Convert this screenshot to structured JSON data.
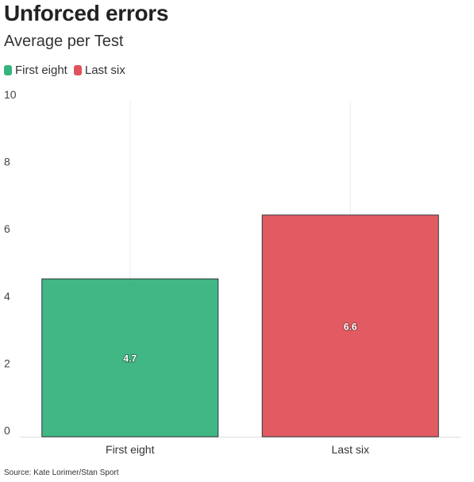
{
  "header": {
    "title": "Unforced errors",
    "subtitle": "Average per Test"
  },
  "legend": [
    {
      "label": "First eight",
      "color": "#36b37e"
    },
    {
      "label": "Last six",
      "color": "#e0525b"
    }
  ],
  "source": "Source: Kate Lorimer/Stan Sport",
  "chart_data": {
    "type": "bar",
    "categories": [
      "First eight",
      "Last six"
    ],
    "values": [
      4.7,
      6.6
    ],
    "value_labels": [
      "4.7",
      "6.6"
    ],
    "colors": [
      "#36b37e",
      "#e0525b"
    ],
    "ylim": [
      0,
      10
    ],
    "yticks": [
      0,
      2,
      4,
      6,
      8,
      10
    ],
    "grid": true,
    "legend_position": "top-left"
  }
}
